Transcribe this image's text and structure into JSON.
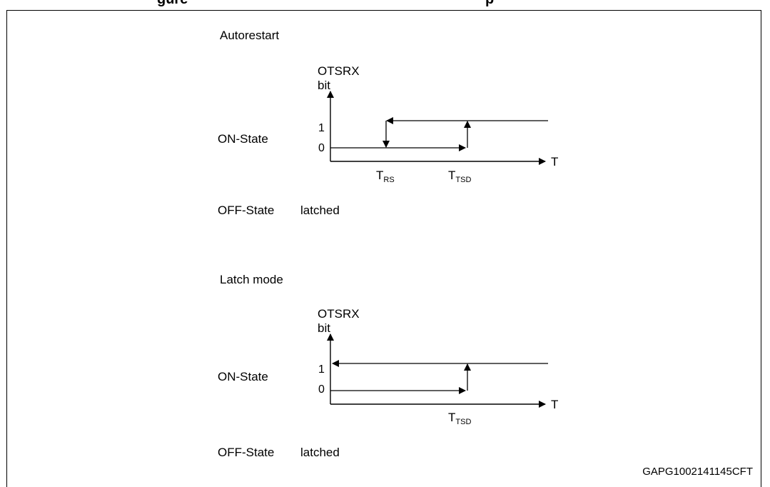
{
  "header": {
    "left_fragment": "gure",
    "right_fragment": "p"
  },
  "panels": [
    {
      "mode_title": "Autorestart",
      "axis_label_line1": "OTSRX",
      "axis_label_line2": "bit",
      "state_on": "ON-State",
      "level_high": "1",
      "level_low": "0",
      "time_axis": "T",
      "markers": [
        {
          "base": "T",
          "sub": "RS"
        },
        {
          "base": "T",
          "sub": "TSD"
        }
      ],
      "state_off": "OFF-State",
      "off_value": "latched"
    },
    {
      "mode_title": "Latch mode",
      "axis_label_line1": "OTSRX",
      "axis_label_line2": "bit",
      "state_on": "ON-State",
      "level_high": "1",
      "level_low": "0",
      "time_axis": "T",
      "markers": [
        {
          "base": "T",
          "sub": "TSD"
        }
      ],
      "state_off": "OFF-State",
      "off_value": "latched"
    }
  ],
  "figure_id": "GAPG1002141145CFT"
}
